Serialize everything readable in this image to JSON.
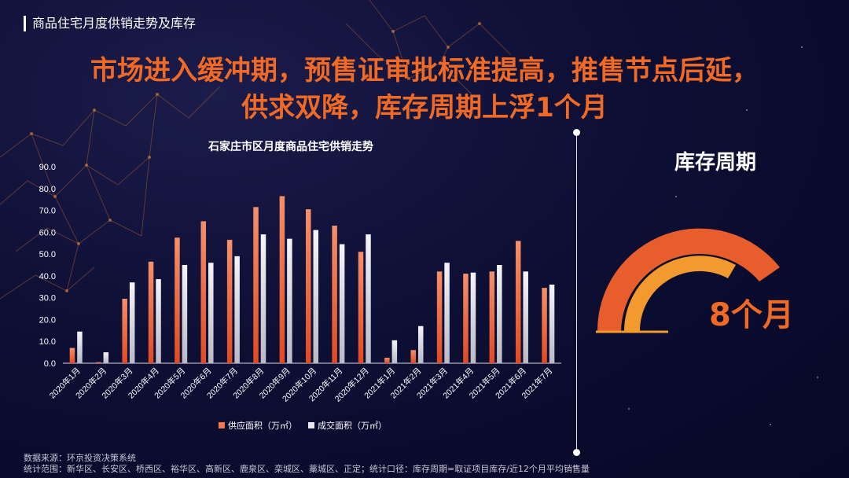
{
  "page": {
    "topic": "商品住宅月度供销走势及库存",
    "headline_line1": "市场进入缓冲期，预售证审批标准提高，推售节点后延，",
    "headline_line2": "供求双降，库存周期上浮1个月"
  },
  "chart_data": {
    "type": "bar",
    "title": "石家庄市区月度商品住宅供销走势",
    "categories": [
      "2020年1月",
      "2020年2月",
      "2020年3月",
      "2020年4月",
      "2020年5月",
      "2020年6月",
      "2020年7月",
      "2020年8月",
      "2020年9月",
      "2020年10月",
      "2020年11月",
      "2020年12月",
      "2021年1月",
      "2021年2月",
      "2021年3月",
      "2021年4月",
      "2021年5月",
      "2021年6月",
      "2021年7月"
    ],
    "series": [
      {
        "name": "供应面积（万㎡）",
        "values": [
          7,
          0.5,
          29.5,
          46.5,
          57.5,
          65,
          56.5,
          71.5,
          76.5,
          70.5,
          63,
          51,
          2.5,
          6,
          42,
          41,
          42,
          56,
          34.5
        ]
      },
      {
        "name": "成交面积（万㎡）",
        "values": [
          14.5,
          5,
          37,
          38.5,
          45,
          46,
          49,
          59,
          57,
          61,
          54.5,
          59,
          10.5,
          17,
          46,
          41.5,
          45,
          42,
          36
        ]
      }
    ],
    "yticks": [
      "0.0",
      "10.0",
      "20.0",
      "30.0",
      "40.0",
      "50.0",
      "60.0",
      "70.0",
      "80.0",
      "90.0"
    ],
    "ylim": [
      0,
      90
    ],
    "colors": {
      "supply": "#f07a4e",
      "deal": "#e8e8ee"
    }
  },
  "gauge": {
    "title": "库存周期",
    "value_label": "8个月",
    "value": 8,
    "colors": {
      "outer": "#e85d2c",
      "inner": "#f39a2e"
    }
  },
  "footer": {
    "source": "数据来源：环京投资决策系统",
    "scope": "统计范围：新华区、长安区、桥西区、裕华区、高新区、鹿泉区、栾城区、藁城区、正定；统计口径：库存周期=取证项目库存/近12个月平均销售量"
  }
}
